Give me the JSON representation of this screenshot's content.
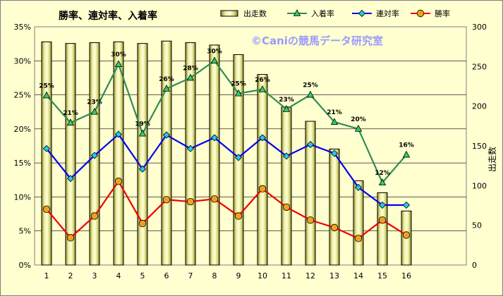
{
  "chart_data": {
    "type": "bar+line",
    "title": "勝率、連対率、入着率",
    "watermark": "©Caniの競馬データ研究室",
    "categories": [
      "1",
      "2",
      "3",
      "4",
      "5",
      "6",
      "7",
      "8",
      "9",
      "10",
      "11",
      "12",
      "13",
      "14",
      "15",
      "16"
    ],
    "y_left": {
      "min": 0,
      "max": 35,
      "step": 5,
      "tick_labels": [
        "0%",
        "5%",
        "10%",
        "15%",
        "20%",
        "25%",
        "30%",
        "35%"
      ]
    },
    "y_right": {
      "min": 0,
      "max": 300,
      "step": 50,
      "label": "出走数",
      "tick_labels": [
        "0",
        "50",
        "100",
        "150",
        "200",
        "250",
        "300"
      ]
    },
    "grid": true,
    "legend_position": "top",
    "series": [
      {
        "name": "出走数",
        "kind": "bar",
        "axis": "right",
        "color": "#f0f098",
        "values": [
          281,
          279,
          280,
          281,
          279,
          282,
          280,
          277,
          265,
          240,
          199,
          181,
          146,
          106,
          91,
          68
        ]
      },
      {
        "name": "入着率",
        "kind": "line",
        "axis": "left",
        "color": "#2e8b57",
        "marker_color": "#33cc66",
        "values": [
          24.9,
          20.9,
          22.5,
          29.5,
          19.3,
          25.9,
          27.5,
          30.0,
          25.2,
          25.8,
          22.9,
          25.0,
          21.0,
          20.0,
          12.1,
          16.2
        ],
        "data_labels": [
          "25%",
          "21%",
          "23%",
          "30%",
          "19%",
          "26%",
          "28%",
          "30%",
          "25%",
          "26%",
          "23%",
          "25%",
          "21%",
          "20%",
          "12%",
          "16%"
        ]
      },
      {
        "name": "連対率",
        "kind": "line",
        "axis": "left",
        "color": "#0000ee",
        "marker_color": "#22c8ee",
        "values": [
          17.1,
          12.7,
          16.1,
          19.2,
          14.1,
          19.1,
          17.1,
          18.7,
          15.8,
          18.7,
          16.0,
          17.7,
          16.4,
          11.4,
          8.8,
          8.8
        ]
      },
      {
        "name": "勝率",
        "kind": "line",
        "axis": "left",
        "color": "#ee0000",
        "marker_color": "#f0a020",
        "values": [
          8.2,
          4.0,
          7.2,
          12.3,
          6.1,
          9.6,
          9.3,
          9.7,
          7.2,
          11.2,
          8.5,
          6.6,
          5.5,
          3.9,
          6.6,
          4.4
        ]
      }
    ]
  }
}
